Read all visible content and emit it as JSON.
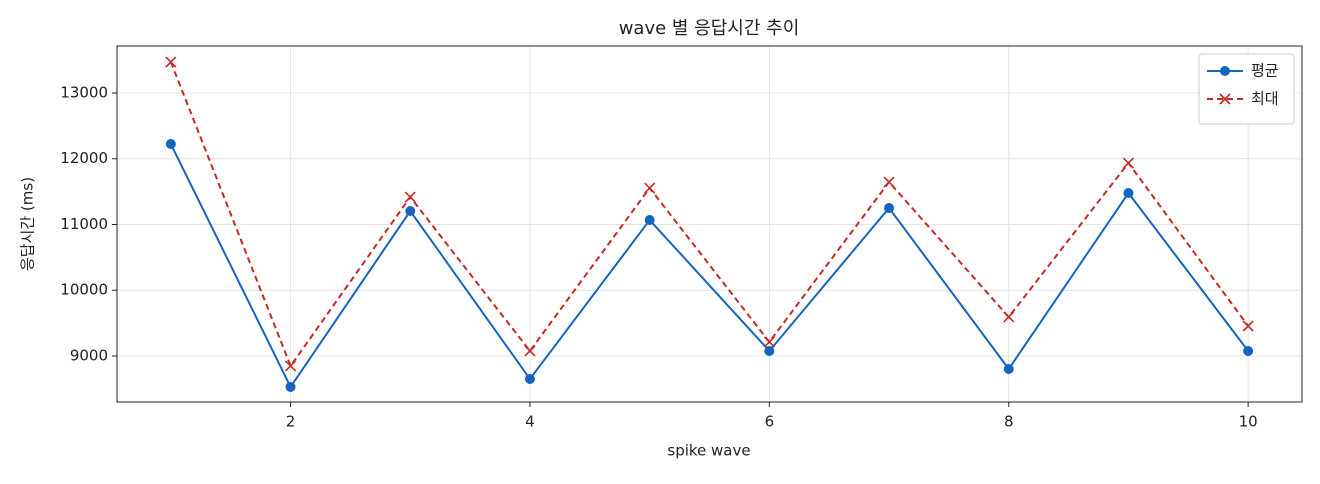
{
  "chart_data": {
    "type": "line",
    "title": "wave 별 응답시간 추이",
    "xlabel": "spike wave",
    "ylabel": "응답시간 (ms)",
    "x": [
      1,
      2,
      3,
      4,
      5,
      6,
      7,
      8,
      9,
      10
    ],
    "series": [
      {
        "name": "평균",
        "color": "#1565c0",
        "marker": "o",
        "dashed": false,
        "values": [
          12224,
          8529,
          11205,
          8650,
          11068,
          9076,
          11251,
          8802,
          11479,
          9076
        ]
      },
      {
        "name": "최대",
        "color": "#c62828",
        "marker": "x",
        "dashed": true,
        "values": [
          13471,
          8848,
          11418,
          9076,
          11555,
          9213,
          11646,
          9593,
          11935,
          9456
        ]
      }
    ],
    "xlim": [
      0.55,
      10.45
    ],
    "ylim": [
      8300,
      13715
    ],
    "xticks": [
      2,
      4,
      6,
      8,
      10
    ],
    "yticks": [
      9000,
      10000,
      11000,
      12000,
      13000
    ],
    "grid": true,
    "legend": "upper right"
  }
}
